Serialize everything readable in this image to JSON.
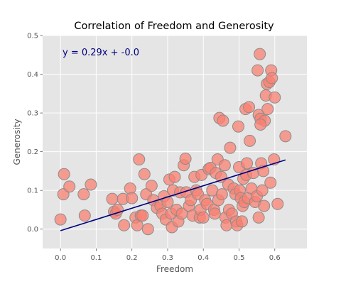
{
  "chart_data": {
    "type": "scatter",
    "title": "Correlation of Freedom and Generosity",
    "xlabel": "Freedom",
    "ylabel": "Generosity",
    "xlim": [
      -0.05,
      0.69
    ],
    "ylim": [
      -0.05,
      0.5
    ],
    "xticks": [
      0.0,
      0.1,
      0.2,
      0.3,
      0.4,
      0.5,
      0.6
    ],
    "xtick_labels": [
      "0.0",
      "0.1",
      "0.2",
      "0.3",
      "0.4",
      "0.5",
      "0.6"
    ],
    "yticks": [
      0.0,
      0.1,
      0.2,
      0.3,
      0.4,
      0.5
    ],
    "ytick_labels": [
      "0.0",
      "0.1",
      "0.2",
      "0.3",
      "0.4",
      "0.5"
    ],
    "grid": true,
    "annotation": "y = 0.29x + -0.0",
    "regression": {
      "slope": 0.29,
      "intercept": -0.004,
      "x_range": [
        0.0,
        0.63
      ]
    },
    "colors": {
      "background": "#e5e5e5",
      "grid": "#ffffff",
      "marker_fill": "#fa8072",
      "marker_edge": "#8c8c8c",
      "line": "#000080",
      "annotation": "#000080"
    },
    "points": [
      [
        0.0,
        0.025
      ],
      [
        0.01,
        0.142
      ],
      [
        0.008,
        0.09
      ],
      [
        0.025,
        0.11
      ],
      [
        0.065,
        0.09
      ],
      [
        0.068,
        0.035
      ],
      [
        0.085,
        0.115
      ],
      [
        0.145,
        0.078
      ],
      [
        0.15,
        0.045
      ],
      [
        0.155,
        0.04
      ],
      [
        0.16,
        0.05
      ],
      [
        0.175,
        0.078
      ],
      [
        0.178,
        0.01
      ],
      [
        0.195,
        0.105
      ],
      [
        0.2,
        0.08
      ],
      [
        0.21,
        0.03
      ],
      [
        0.215,
        0.01
      ],
      [
        0.22,
        0.18
      ],
      [
        0.225,
        0.035
      ],
      [
        0.23,
        0.035
      ],
      [
        0.235,
        0.142
      ],
      [
        0.24,
        0.09
      ],
      [
        0.245,
        0.0
      ],
      [
        0.255,
        0.112
      ],
      [
        0.26,
        0.075
      ],
      [
        0.27,
        0.055
      ],
      [
        0.28,
        0.06
      ],
      [
        0.285,
        0.04
      ],
      [
        0.29,
        0.085
      ],
      [
        0.295,
        0.025
      ],
      [
        0.3,
        0.07
      ],
      [
        0.305,
        0.128
      ],
      [
        0.31,
        0.04
      ],
      [
        0.312,
        0.005
      ],
      [
        0.315,
        0.1
      ],
      [
        0.32,
        0.135
      ],
      [
        0.325,
        0.05
      ],
      [
        0.33,
        0.02
      ],
      [
        0.335,
        0.095
      ],
      [
        0.34,
        0.04
      ],
      [
        0.345,
        0.165
      ],
      [
        0.35,
        0.182
      ],
      [
        0.352,
        0.095
      ],
      [
        0.36,
        0.06
      ],
      [
        0.365,
        0.075
      ],
      [
        0.37,
        0.035
      ],
      [
        0.375,
        0.135
      ],
      [
        0.38,
        0.1
      ],
      [
        0.385,
        0.09
      ],
      [
        0.39,
        0.03
      ],
      [
        0.392,
        0.05
      ],
      [
        0.395,
        0.14
      ],
      [
        0.4,
        0.03
      ],
      [
        0.405,
        0.075
      ],
      [
        0.41,
        0.065
      ],
      [
        0.415,
        0.155
      ],
      [
        0.42,
        0.158
      ],
      [
        0.425,
        0.1
      ],
      [
        0.43,
        0.05
      ],
      [
        0.432,
        0.04
      ],
      [
        0.435,
        0.145
      ],
      [
        0.44,
        0.18
      ],
      [
        0.442,
        0.075
      ],
      [
        0.445,
        0.287
      ],
      [
        0.45,
        0.135
      ],
      [
        0.452,
        0.09
      ],
      [
        0.455,
        0.28
      ],
      [
        0.46,
        0.165
      ],
      [
        0.462,
        0.03
      ],
      [
        0.465,
        0.01
      ],
      [
        0.47,
        0.115
      ],
      [
        0.472,
        0.05
      ],
      [
        0.475,
        0.21
      ],
      [
        0.48,
        0.04
      ],
      [
        0.485,
        0.105
      ],
      [
        0.49,
        0.09
      ],
      [
        0.492,
        0.02
      ],
      [
        0.495,
        0.01
      ],
      [
        0.498,
        0.265
      ],
      [
        0.5,
        0.16
      ],
      [
        0.502,
        0.1
      ],
      [
        0.505,
        0.08
      ],
      [
        0.508,
        0.02
      ],
      [
        0.51,
        0.06
      ],
      [
        0.512,
        0.13
      ],
      [
        0.515,
        0.07
      ],
      [
        0.518,
        0.31
      ],
      [
        0.52,
        0.14
      ],
      [
        0.522,
        0.17
      ],
      [
        0.525,
        0.08
      ],
      [
        0.528,
        0.315
      ],
      [
        0.53,
        0.228
      ],
      [
        0.535,
        0.105
      ],
      [
        0.54,
        0.145
      ],
      [
        0.545,
        0.07
      ],
      [
        0.55,
        0.085
      ],
      [
        0.552,
        0.41
      ],
      [
        0.555,
        0.295
      ],
      [
        0.558,
        0.452
      ],
      [
        0.56,
        0.285
      ],
      [
        0.562,
        0.17
      ],
      [
        0.565,
        0.1
      ],
      [
        0.568,
        0.15
      ],
      [
        0.57,
        0.06
      ],
      [
        0.572,
        0.28
      ],
      [
        0.575,
        0.345
      ],
      [
        0.578,
        0.375
      ],
      [
        0.58,
        0.31
      ],
      [
        0.585,
        0.38
      ],
      [
        0.588,
        0.12
      ],
      [
        0.59,
        0.41
      ],
      [
        0.592,
        0.39
      ],
      [
        0.598,
        0.18
      ],
      [
        0.6,
        0.34
      ],
      [
        0.608,
        0.065
      ],
      [
        0.63,
        0.24
      ],
      [
        0.555,
        0.03
      ],
      [
        0.56,
        0.27
      ]
    ]
  }
}
